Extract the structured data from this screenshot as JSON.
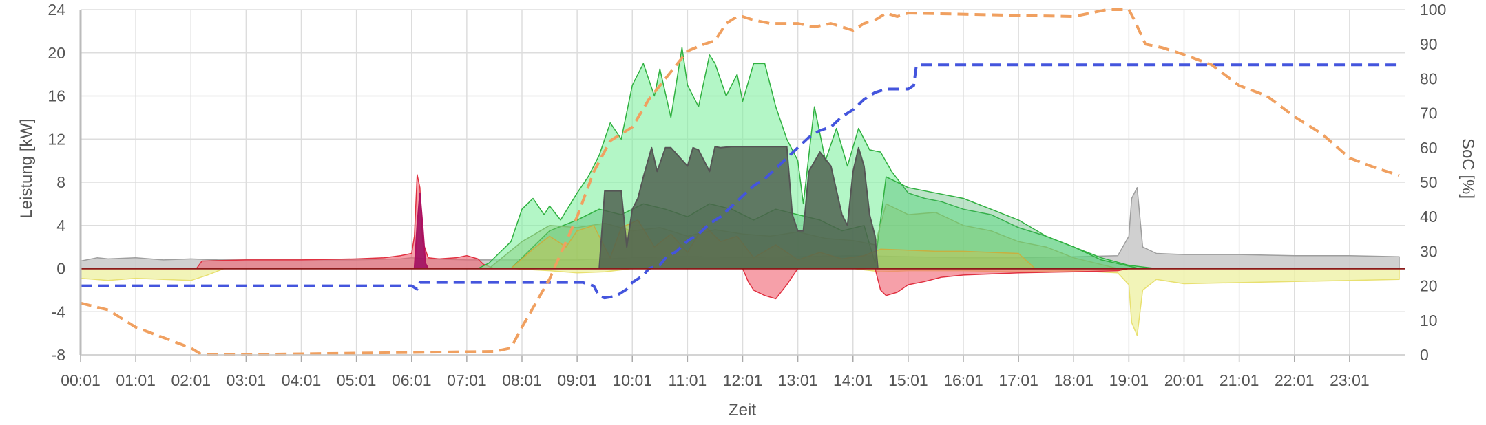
{
  "chart_data": {
    "type": "area",
    "xlabel": "Zeit",
    "ylabel": "Leistung [kW]",
    "y2label": "SoC [%]",
    "x_tick_labels": [
      "00:01",
      "01:01",
      "02:01",
      "03:01",
      "04:01",
      "05:01",
      "06:01",
      "07:01",
      "08:01",
      "09:01",
      "10:01",
      "11:01",
      "12:01",
      "13:01",
      "14:01",
      "15:01",
      "16:01",
      "17:01",
      "18:01",
      "19:01",
      "20:01",
      "21:01",
      "22:01",
      "23:01"
    ],
    "xlim": [
      0,
      24
    ],
    "ylim": [
      -8,
      24
    ],
    "y_ticks": [
      24,
      20,
      16,
      12,
      8,
      4,
      0,
      -4,
      -8
    ],
    "y2lim": [
      0,
      100
    ],
    "y2_ticks": [
      100,
      90,
      80,
      70,
      60,
      50,
      40,
      30,
      20,
      10,
      0
    ],
    "grid": true,
    "colors": {
      "house": "#9e9e9e",
      "grid_import": "#e03040",
      "grid_export": "#e8b040",
      "battery_discharge": "#b01060",
      "pv_total": "#30b040",
      "pv_string2": "#30b040",
      "pv_string3": "#7cc070",
      "pv_string4": "#c8b040",
      "wallbox": "#555555",
      "battery_charge_neg": "#e8e070",
      "soc_blue": "#4455dd",
      "soc_orange": "#f0a060",
      "zero_line": "#8b1a1a",
      "gridline": "#dddddd"
    },
    "series": [
      {
        "key": "house",
        "axis": "left",
        "x": [
          0,
          0.3,
          0.5,
          1,
          1.5,
          2,
          2.5,
          3,
          4,
          5,
          5.8,
          6,
          6.3,
          7,
          8,
          9,
          10,
          11,
          12,
          13,
          14,
          15,
          16,
          17,
          18,
          18.8,
          19,
          19.05,
          19.15,
          19.25,
          19.5,
          20,
          21,
          22,
          23,
          23.9
        ],
        "y": [
          0.7,
          1.0,
          0.9,
          1.0,
          0.8,
          0.9,
          0.8,
          0.8,
          0.8,
          0.8,
          0.9,
          1.0,
          0.9,
          0.8,
          0.8,
          0.8,
          1.0,
          1.1,
          1.0,
          1.1,
          1.2,
          1.1,
          1.0,
          1.0,
          1.1,
          1.2,
          3.0,
          6.5,
          7.5,
          2.0,
          1.4,
          1.3,
          1.3,
          1.2,
          1.2,
          1.1
        ]
      },
      {
        "key": "battery_charge_neg",
        "axis": "left",
        "x": [
          0,
          0.5,
          1,
          1.5,
          2,
          2.3,
          2.6,
          7.8,
          8.5,
          9,
          9.5,
          10,
          14,
          14.5,
          15,
          16,
          17,
          18,
          18.8,
          19,
          19.05,
          19.15,
          19.25,
          19.5,
          20,
          21,
          22,
          23,
          23.9
        ],
        "y": [
          -0.9,
          -1.1,
          -0.9,
          -1.0,
          -1.1,
          -0.6,
          0,
          0,
          -0.2,
          -0.4,
          -0.3,
          0,
          0,
          -0.3,
          -0.2,
          -0.2,
          -0.3,
          -0.2,
          -0.4,
          -1.5,
          -5.0,
          -6.2,
          -2.0,
          -1.0,
          -1.4,
          -1.3,
          -1.2,
          -1.1,
          -1.0
        ]
      },
      {
        "key": "grid_import",
        "axis": "left",
        "x": [
          0,
          2.1,
          2.2,
          3,
          4,
          5,
          5.5,
          5.8,
          6.0,
          6.05,
          6.1,
          6.15,
          6.2,
          6.3,
          6.5,
          6.8,
          7.0,
          7.2,
          7.3,
          7.5,
          12.0,
          12.1,
          12.2,
          12.4,
          12.6,
          12.8,
          13.0,
          14.4,
          14.5,
          14.6,
          14.8,
          15.0,
          15.3,
          15.6,
          16,
          17,
          18,
          18.8,
          19,
          23.9
        ],
        "y": [
          0,
          0,
          0.7,
          0.8,
          0.8,
          0.9,
          1.0,
          1.2,
          1.4,
          3.0,
          8.7,
          7.5,
          2.5,
          1.0,
          0.9,
          1.0,
          1.2,
          0.9,
          0.4,
          0,
          0,
          -1.2,
          -2.0,
          -2.5,
          -2.8,
          -1.5,
          0,
          0,
          -2.0,
          -2.5,
          -2.2,
          -1.5,
          -1.2,
          -0.8,
          -0.6,
          -0.4,
          -0.3,
          -0.2,
          0,
          0
        ]
      },
      {
        "key": "battery_discharge",
        "axis": "left",
        "x": [
          6.05,
          6.1,
          6.15,
          6.2,
          6.25,
          6.3
        ],
        "y": [
          0,
          4.0,
          7.0,
          4.0,
          0.5,
          0
        ]
      },
      {
        "key": "pv_total",
        "axis": "left",
        "x": [
          7.2,
          7.4,
          7.6,
          7.8,
          8.0,
          8.2,
          8.4,
          8.5,
          8.7,
          9.0,
          9.2,
          9.4,
          9.6,
          9.8,
          10.0,
          10.2,
          10.4,
          10.5,
          10.7,
          10.9,
          11.0,
          11.2,
          11.4,
          11.5,
          11.7,
          11.9,
          12.0,
          12.2,
          12.4,
          12.6,
          12.8,
          13.0,
          13.1,
          13.3,
          13.5,
          13.7,
          13.9,
          14.1,
          14.3,
          14.5,
          14.7,
          15.0,
          15.3,
          15.6,
          16.0,
          16.5,
          17.0,
          17.5,
          18.0,
          18.5,
          19.0,
          19.5,
          19.9
        ],
        "y": [
          0,
          0.5,
          1.5,
          2.5,
          5.5,
          6.5,
          5.0,
          5.8,
          4.5,
          7.0,
          8.5,
          10.5,
          13.5,
          12.0,
          17.0,
          19.0,
          16.0,
          18.5,
          14.0,
          20.5,
          17.0,
          15.0,
          19.8,
          19.0,
          16.0,
          18.0,
          15.5,
          19.0,
          19.0,
          15.0,
          12.0,
          10.0,
          6.0,
          15.0,
          10.0,
          13.0,
          9.5,
          13.0,
          11.0,
          10.8,
          9.0,
          7.0,
          6.5,
          6.2,
          5.5,
          5.0,
          3.8,
          3.0,
          2.0,
          1.0,
          0.3,
          0,
          0
        ]
      },
      {
        "key": "pv_string2",
        "axis": "left",
        "x": [
          7.8,
          8.2,
          8.5,
          9.0,
          9.4,
          9.8,
          10.2,
          10.6,
          11.0,
          11.4,
          11.8,
          12.2,
          12.6,
          13.0,
          13.4,
          13.8,
          14.2,
          14.4,
          14.6,
          15.0,
          15.5,
          16.0,
          16.5,
          17.0,
          17.5,
          18.0,
          18.5,
          19.2
        ],
        "y": [
          0,
          2.0,
          3.5,
          4.5,
          5.5,
          5.0,
          6.0,
          5.5,
          4.8,
          6.0,
          5.5,
          4.5,
          5.5,
          5.0,
          4.5,
          3.5,
          4.0,
          0.5,
          8.5,
          7.5,
          7.0,
          6.5,
          5.5,
          4.5,
          3.0,
          2.0,
          0.8,
          0
        ]
      },
      {
        "key": "pv_string3",
        "axis": "left",
        "x": [
          7.4,
          8.0,
          8.5,
          9.0,
          9.5,
          10.0,
          10.5,
          11.0,
          11.5,
          12.0,
          12.5,
          13.0,
          13.5,
          14.0,
          14.4,
          14.6,
          15.0,
          15.5,
          16.0,
          16.5,
          17.0,
          17.5,
          18.0,
          18.8
        ],
        "y": [
          0,
          2.5,
          4.0,
          3.8,
          4.2,
          3.5,
          3.8,
          3.0,
          3.6,
          3.2,
          3.0,
          3.4,
          2.8,
          2.6,
          2.2,
          6.0,
          5.0,
          5.2,
          4.0,
          3.5,
          2.5,
          2.0,
          1.0,
          0
        ]
      },
      {
        "key": "pv_string4",
        "axis": "left",
        "x": [
          7.8,
          8.2,
          8.5,
          8.8,
          9.0,
          9.3,
          9.6,
          9.8,
          10.1,
          10.4,
          10.7,
          11.0,
          11.3,
          11.6,
          11.9,
          12.2,
          12.6,
          13.0,
          13.4,
          13.8,
          14.2,
          14.5,
          15.0,
          15.5,
          16.0,
          16.5,
          17.0,
          17.3
        ],
        "y": [
          0,
          1.8,
          3.0,
          2.0,
          3.5,
          4.0,
          1.0,
          3.8,
          4.5,
          2.0,
          3.2,
          1.5,
          4.0,
          2.5,
          3.0,
          1.0,
          2.2,
          0.8,
          1.5,
          0.9,
          1.2,
          1.8,
          1.7,
          1.6,
          1.6,
          1.5,
          1.4,
          0
        ]
      },
      {
        "key": "wallbox",
        "axis": "left",
        "x": [
          9.4,
          9.5,
          9.8,
          9.9,
          10.0,
          10.1,
          10.2,
          10.35,
          10.45,
          10.6,
          10.7,
          11.0,
          11.1,
          11.2,
          11.4,
          11.5,
          11.6,
          11.8,
          12.0,
          12.2,
          12.4,
          12.6,
          12.8,
          12.9,
          13.0,
          13.1,
          13.2,
          13.4,
          13.6,
          13.8,
          13.9,
          14.0,
          14.1,
          14.2,
          14.3,
          14.4,
          14.45
        ],
        "y": [
          0,
          7.2,
          7.2,
          2.0,
          5.5,
          6.5,
          8.5,
          11.2,
          9.0,
          11.2,
          11.2,
          9.5,
          11.2,
          11.0,
          9.0,
          11.3,
          11.2,
          11.3,
          11.3,
          11.3,
          11.3,
          11.3,
          11.3,
          5.0,
          3.5,
          3.5,
          9.0,
          10.8,
          9.5,
          5.0,
          4.0,
          9.0,
          11.2,
          9.5,
          5.0,
          3.0,
          0
        ]
      },
      {
        "key": "soc_blue",
        "axis": "right",
        "style": "dashed",
        "x": [
          0,
          6.0,
          6.1,
          6.15,
          6.2,
          9.1,
          9.3,
          9.4,
          9.5,
          9.7,
          9.8,
          9.9,
          10.0,
          10.1,
          10.2,
          10.3,
          10.5,
          10.6,
          10.8,
          11.0,
          11.2,
          11.4,
          11.6,
          11.8,
          12.0,
          12.2,
          12.4,
          12.6,
          12.8,
          13.0,
          13.2,
          13.4,
          13.6,
          13.8,
          14.0,
          14.2,
          14.4,
          14.6,
          14.8,
          15.0,
          15.1,
          15.15,
          23.9
        ],
        "y": [
          20,
          20,
          19,
          21,
          21,
          21,
          20,
          17,
          16.5,
          17,
          18,
          19,
          21,
          22,
          23,
          25,
          26,
          28,
          30,
          33,
          35,
          38,
          40,
          43,
          46,
          49,
          51,
          54,
          57,
          60,
          63,
          65,
          66,
          69,
          71,
          74,
          76,
          77,
          77,
          77,
          78,
          84,
          84
        ]
      },
      {
        "key": "soc_orange",
        "axis": "right",
        "style": "dashed",
        "x": [
          0,
          0.5,
          1.0,
          1.5,
          2.0,
          2.2,
          2.5,
          7.5,
          7.8,
          8.0,
          8.5,
          9.0,
          9.3,
          9.6,
          10.0,
          10.3,
          10.6,
          11.0,
          11.3,
          11.5,
          11.7,
          11.9,
          12.0,
          12.2,
          12.5,
          13.0,
          13.3,
          13.6,
          13.8,
          14.0,
          14.2,
          14.4,
          14.6,
          14.8,
          15.0,
          18.0,
          18.3,
          18.6,
          19.0,
          19.1,
          19.3,
          19.6,
          20.0,
          20.5,
          21.0,
          21.5,
          22.0,
          22.5,
          23.0,
          23.5,
          23.9
        ],
        "y": [
          15,
          13,
          8,
          5,
          2,
          0,
          0,
          1,
          2,
          8,
          22,
          40,
          53,
          62,
          66,
          74,
          80,
          88,
          90,
          91,
          96,
          98,
          98,
          97,
          96,
          96,
          95,
          96,
          95,
          94,
          96,
          97,
          99,
          98,
          99,
          98,
          99,
          100,
          100,
          97,
          90,
          89,
          87,
          84,
          78,
          75,
          69,
          64,
          57,
          54,
          52
        ]
      }
    ]
  }
}
